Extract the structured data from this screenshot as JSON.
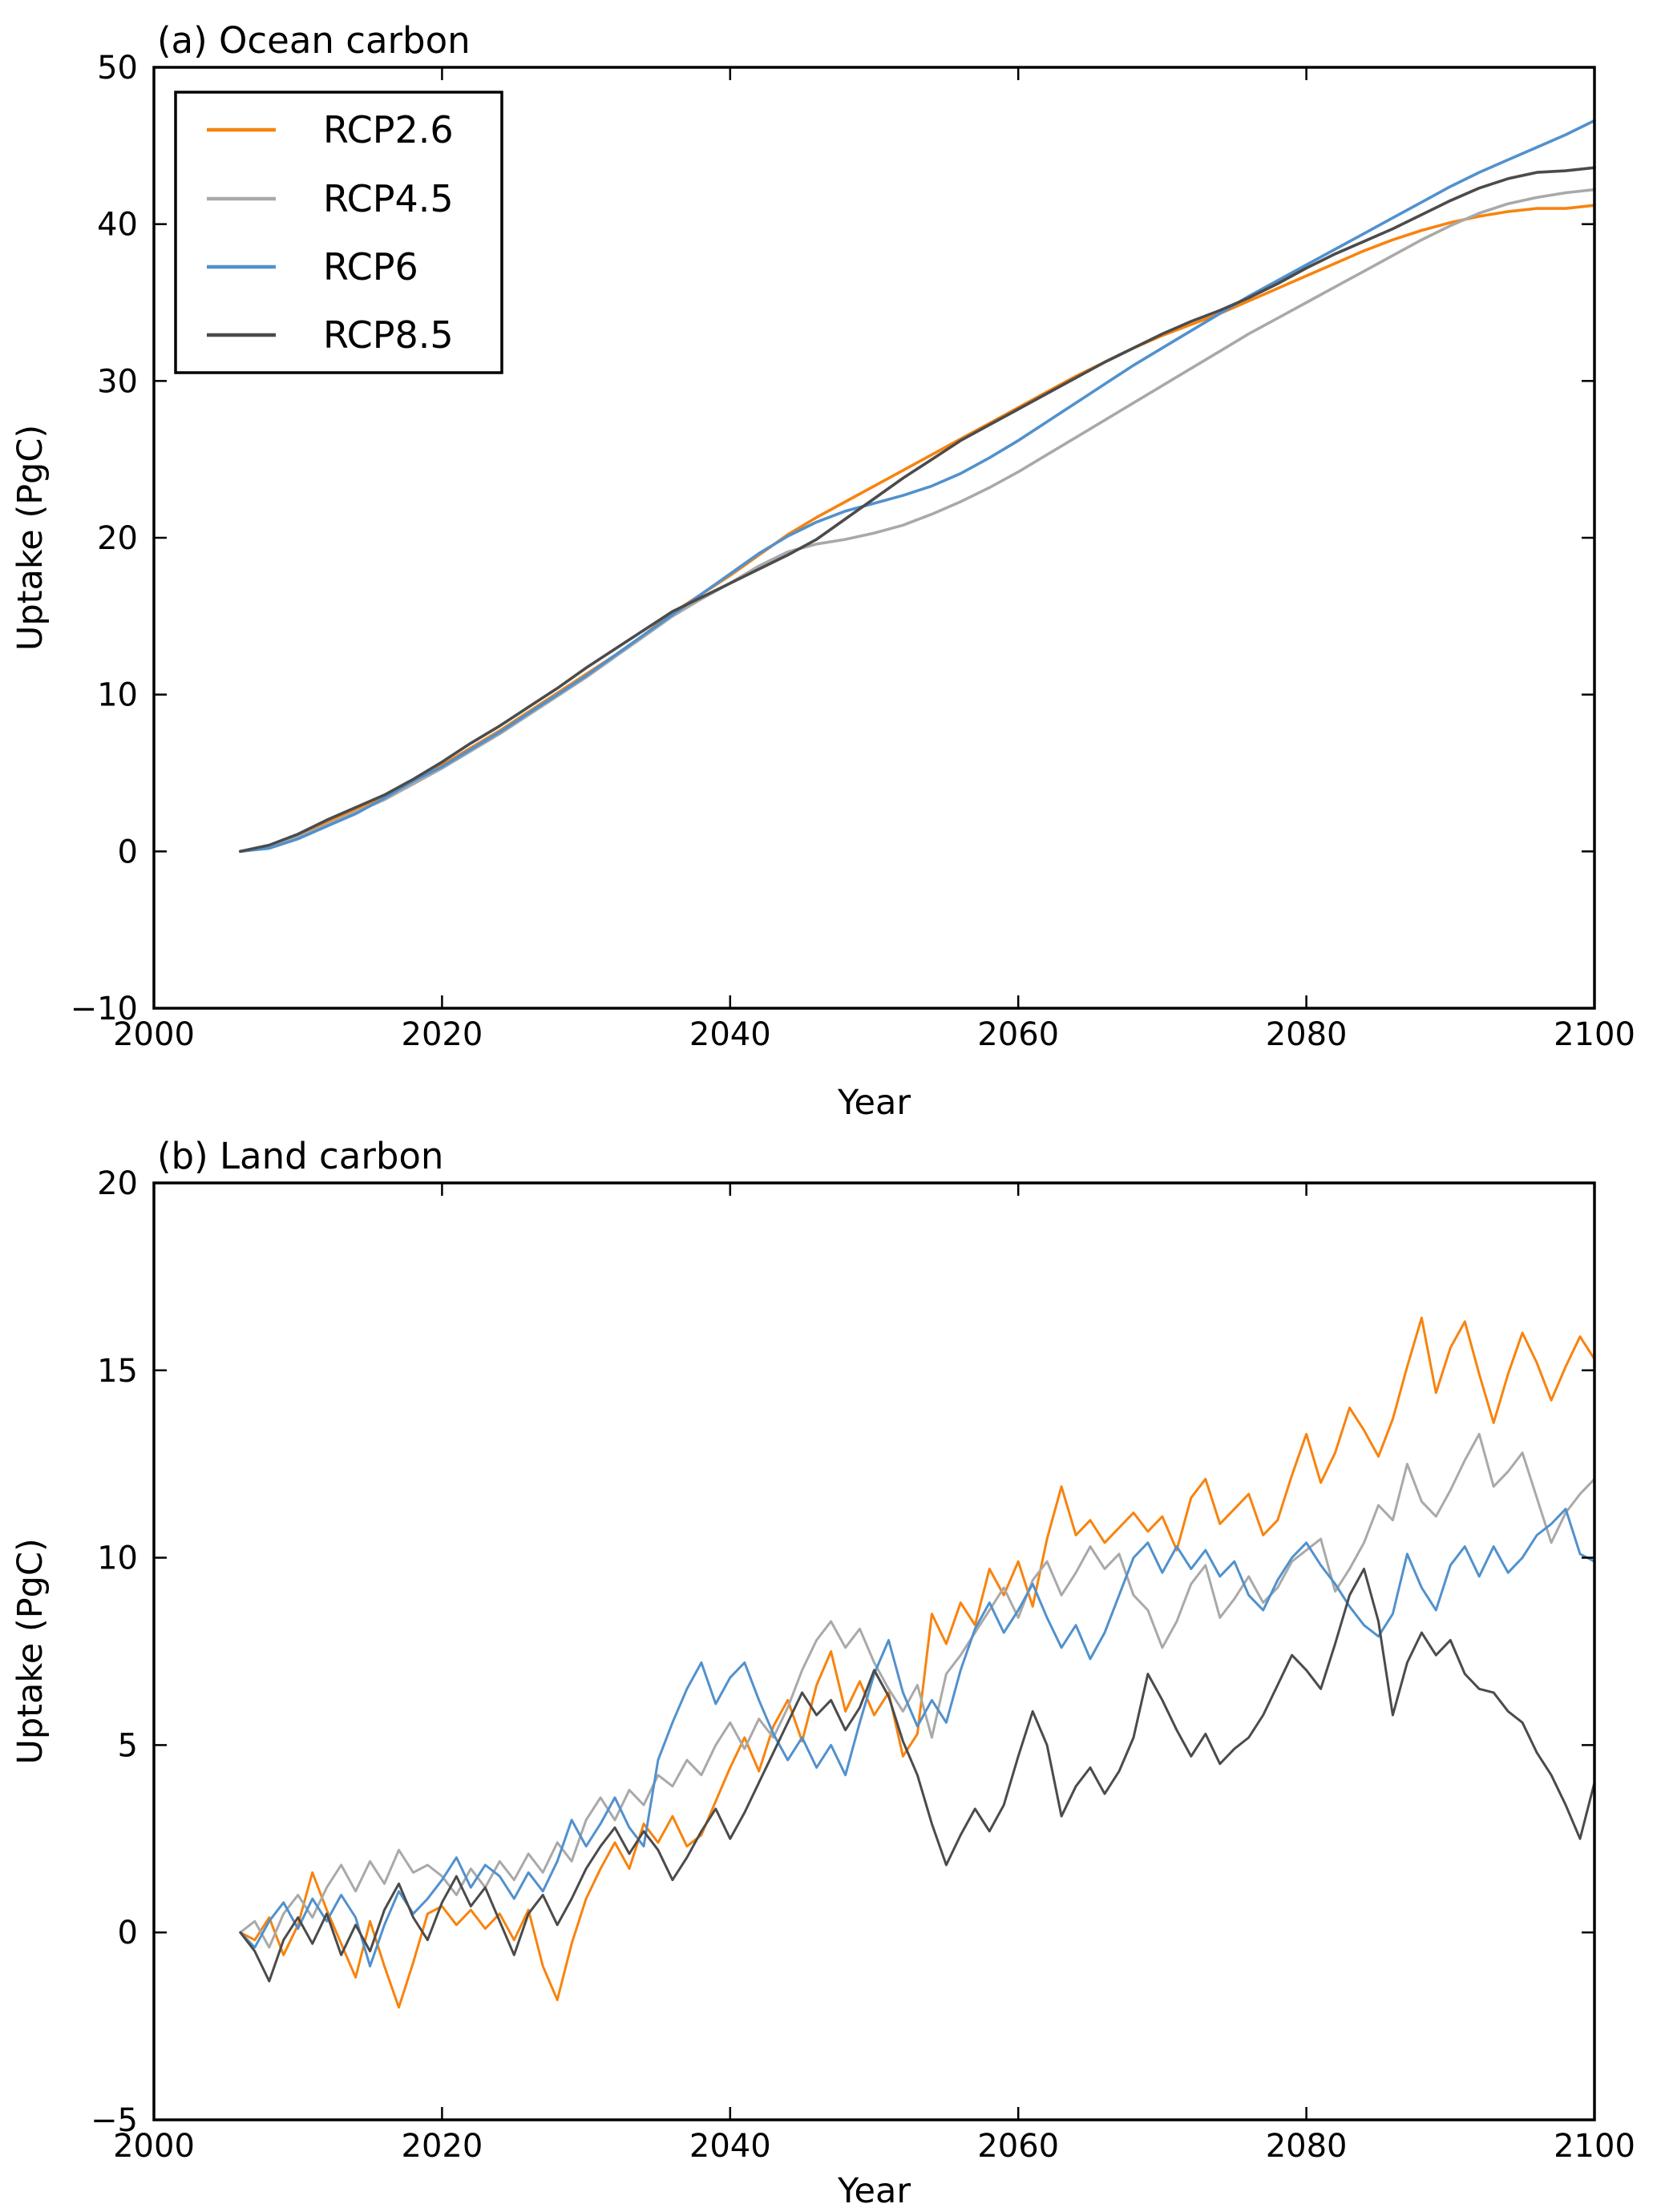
{
  "chart_data": [
    {
      "type": "line",
      "panel": "a",
      "title": "(a) Ocean carbon",
      "xlabel": "Year",
      "ylabel": "Uptake (PgC)",
      "xlim": [
        2000,
        2100
      ],
      "ylim": [
        -10,
        50
      ],
      "grid": false,
      "x_ticks": [
        2000,
        2020,
        2040,
        2060,
        2080,
        2100
      ],
      "x_tick_labels": [
        "2000",
        "2020",
        "2040",
        "2060",
        "2080",
        "2100"
      ],
      "y_ticks": [
        -10,
        0,
        10,
        20,
        30,
        40,
        50
      ],
      "y_tick_labels": [
        "−10",
        "0",
        "10",
        "20",
        "30",
        "40",
        "50"
      ],
      "legend": {
        "position": "upper-left",
        "entries": [
          "RCP2.6",
          "RCP4.5",
          "RCP6",
          "RCP8.5"
        ]
      },
      "x": [
        2006,
        2008,
        2010,
        2012,
        2014,
        2016,
        2018,
        2020,
        2022,
        2024,
        2026,
        2028,
        2030,
        2032,
        2034,
        2036,
        2038,
        2040,
        2042,
        2044,
        2046,
        2048,
        2050,
        2052,
        2054,
        2056,
        2058,
        2060,
        2062,
        2064,
        2066,
        2068,
        2070,
        2072,
        2074,
        2076,
        2078,
        2080,
        2082,
        2084,
        2086,
        2088,
        2090,
        2092,
        2094,
        2096,
        2098,
        2100
      ],
      "series": [
        {
          "name": "RCP2.6",
          "color": "#f8830e",
          "values": [
            0,
            0.3,
            1.0,
            1.9,
            2.7,
            3.5,
            4.4,
            5.5,
            6.6,
            7.7,
            8.9,
            10.1,
            11.3,
            12.5,
            13.8,
            15.2,
            16.4,
            17.6,
            18.9,
            20.2,
            21.3,
            22.3,
            23.3,
            24.3,
            25.3,
            26.3,
            27.3,
            28.3,
            29.3,
            30.3,
            31.2,
            32.1,
            32.9,
            33.6,
            34.3,
            35.1,
            35.9,
            36.7,
            37.5,
            38.3,
            39.0,
            39.6,
            40.1,
            40.5,
            40.8,
            41.0,
            41.0,
            41.2
          ]
        },
        {
          "name": "RCP4.5",
          "color": "#a9a9a9",
          "values": [
            0,
            0.3,
            0.9,
            1.7,
            2.5,
            3.3,
            4.3,
            5.3,
            6.4,
            7.5,
            8.7,
            9.9,
            11.1,
            12.4,
            13.7,
            15.0,
            16.1,
            17.1,
            18.2,
            19.1,
            19.6,
            19.9,
            20.3,
            20.8,
            21.5,
            22.3,
            23.2,
            24.2,
            25.3,
            26.4,
            27.5,
            28.6,
            29.7,
            30.8,
            31.9,
            33.0,
            34.0,
            35.0,
            36.0,
            37.0,
            38.0,
            39.0,
            39.9,
            40.7,
            41.3,
            41.7,
            42.0,
            42.2
          ]
        },
        {
          "name": "RCP6",
          "color": "#5191cd",
          "values": [
            0,
            0.2,
            0.8,
            1.6,
            2.4,
            3.4,
            4.5,
            5.4,
            6.5,
            7.6,
            8.8,
            10.0,
            11.2,
            12.5,
            13.8,
            15.1,
            16.4,
            17.7,
            19.0,
            20.1,
            21.0,
            21.7,
            22.2,
            22.7,
            23.3,
            24.1,
            25.1,
            26.2,
            27.4,
            28.6,
            29.8,
            31.0,
            32.1,
            33.2,
            34.3,
            35.4,
            36.4,
            37.4,
            38.4,
            39.4,
            40.4,
            41.4,
            42.4,
            43.3,
            44.1,
            44.9,
            45.7,
            46.6
          ]
        },
        {
          "name": "RCP8.5",
          "color": "#4b4b4b",
          "values": [
            0,
            0.4,
            1.1,
            2.0,
            2.8,
            3.6,
            4.6,
            5.7,
            6.9,
            8.0,
            9.2,
            10.4,
            11.7,
            12.9,
            14.1,
            15.3,
            16.2,
            17.1,
            18.0,
            18.9,
            19.9,
            21.2,
            22.5,
            23.8,
            25.0,
            26.2,
            27.2,
            28.2,
            29.2,
            30.2,
            31.2,
            32.1,
            33.0,
            33.8,
            34.5,
            35.3,
            36.2,
            37.2,
            38.1,
            38.9,
            39.7,
            40.6,
            41.5,
            42.3,
            42.9,
            43.3,
            43.4,
            43.6
          ]
        }
      ]
    },
    {
      "type": "line",
      "panel": "b",
      "title": "(b) Land carbon",
      "xlabel": "Year",
      "ylabel": "Uptake (PgC)",
      "xlim": [
        2000,
        2100
      ],
      "ylim": [
        -5,
        20
      ],
      "grid": false,
      "x_ticks": [
        2000,
        2020,
        2040,
        2060,
        2080,
        2100
      ],
      "x_tick_labels": [
        "2000",
        "2020",
        "2040",
        "2060",
        "2080",
        "2100"
      ],
      "y_ticks": [
        -5,
        0,
        5,
        10,
        15,
        20
      ],
      "y_tick_labels": [
        "−5",
        "0",
        "5",
        "10",
        "15",
        "20"
      ],
      "legend": null,
      "x": [
        2006,
        2007,
        2008,
        2009,
        2010,
        2011,
        2012,
        2013,
        2014,
        2015,
        2016,
        2017,
        2018,
        2019,
        2020,
        2021,
        2022,
        2023,
        2024,
        2025,
        2026,
        2027,
        2028,
        2029,
        2030,
        2031,
        2032,
        2033,
        2034,
        2035,
        2036,
        2037,
        2038,
        2039,
        2040,
        2041,
        2042,
        2043,
        2044,
        2045,
        2046,
        2047,
        2048,
        2049,
        2050,
        2051,
        2052,
        2053,
        2054,
        2055,
        2056,
        2057,
        2058,
        2059,
        2060,
        2061,
        2062,
        2063,
        2064,
        2065,
        2066,
        2067,
        2068,
        2069,
        2070,
        2071,
        2072,
        2073,
        2074,
        2075,
        2076,
        2077,
        2078,
        2079,
        2080,
        2081,
        2082,
        2083,
        2084,
        2085,
        2086,
        2087,
        2088,
        2089,
        2090,
        2091,
        2092,
        2093,
        2094,
        2095,
        2096,
        2097,
        2098,
        2099,
        2100
      ],
      "series": [
        {
          "name": "RCP2.6",
          "color": "#f8830e",
          "values": [
            0.0,
            -0.2,
            0.4,
            -0.6,
            0.2,
            1.6,
            0.6,
            -0.3,
            -1.2,
            0.3,
            -0.9,
            -2.0,
            -0.8,
            0.5,
            0.7,
            0.2,
            0.6,
            0.1,
            0.5,
            -0.2,
            0.6,
            -0.9,
            -1.8,
            -0.3,
            0.9,
            1.7,
            2.4,
            1.7,
            2.9,
            2.4,
            3.1,
            2.3,
            2.6,
            3.5,
            4.4,
            5.2,
            4.3,
            5.5,
            6.2,
            5.1,
            6.6,
            7.5,
            5.9,
            6.7,
            5.8,
            6.4,
            4.7,
            5.3,
            8.5,
            7.7,
            8.8,
            8.2,
            9.7,
            9.0,
            9.9,
            8.7,
            10.5,
            11.9,
            10.6,
            11.0,
            10.4,
            10.8,
            11.2,
            10.7,
            11.1,
            10.2,
            11.6,
            12.1,
            10.9,
            11.3,
            11.7,
            10.6,
            11.0,
            12.2,
            13.3,
            12.0,
            12.8,
            14.0,
            13.4,
            12.7,
            13.7,
            15.1,
            16.4,
            14.4,
            15.6,
            16.3,
            14.9,
            13.6,
            14.9,
            16.0,
            15.2,
            14.2,
            15.1,
            15.9,
            15.3
          ]
        },
        {
          "name": "RCP4.5",
          "color": "#a9a9a9",
          "values": [
            0.0,
            0.3,
            -0.4,
            0.5,
            1.0,
            0.4,
            1.2,
            1.8,
            1.1,
            1.9,
            1.3,
            2.2,
            1.6,
            1.8,
            1.5,
            1.0,
            1.7,
            1.2,
            1.9,
            1.4,
            2.1,
            1.6,
            2.4,
            1.9,
            3.0,
            3.6,
            3.0,
            3.8,
            3.4,
            4.2,
            3.9,
            4.6,
            4.2,
            5.0,
            5.6,
            4.9,
            5.7,
            5.2,
            6.0,
            7.0,
            7.8,
            8.3,
            7.6,
            8.1,
            7.2,
            6.5,
            5.9,
            6.6,
            5.2,
            6.9,
            7.4,
            8.0,
            8.6,
            9.2,
            8.4,
            9.4,
            9.9,
            9.0,
            9.6,
            10.3,
            9.7,
            10.1,
            9.0,
            8.6,
            7.6,
            8.3,
            9.3,
            9.8,
            8.4,
            8.9,
            9.5,
            8.8,
            9.2,
            9.9,
            10.2,
            10.5,
            9.1,
            9.7,
            10.4,
            11.4,
            11.0,
            12.5,
            11.5,
            11.1,
            11.8,
            12.6,
            13.3,
            11.9,
            12.3,
            12.8,
            11.6,
            10.4,
            11.2,
            11.7,
            12.1
          ]
        },
        {
          "name": "RCP6",
          "color": "#5191cd",
          "values": [
            0.0,
            -0.4,
            0.3,
            0.8,
            0.1,
            0.9,
            0.3,
            1.0,
            0.4,
            -0.9,
            0.2,
            1.1,
            0.5,
            0.9,
            1.4,
            2.0,
            1.2,
            1.8,
            1.5,
            0.9,
            1.6,
            1.1,
            1.9,
            3.0,
            2.3,
            2.9,
            3.6,
            2.8,
            2.3,
            4.6,
            5.6,
            6.5,
            7.2,
            6.1,
            6.8,
            7.2,
            6.2,
            5.3,
            4.6,
            5.2,
            4.4,
            5.0,
            4.2,
            5.6,
            6.9,
            7.8,
            6.4,
            5.5,
            6.2,
            5.6,
            7.0,
            8.1,
            8.8,
            8.0,
            8.6,
            9.3,
            8.4,
            7.6,
            8.2,
            7.3,
            8.0,
            9.0,
            10.0,
            10.4,
            9.6,
            10.3,
            9.7,
            10.2,
            9.5,
            9.9,
            9.0,
            8.6,
            9.4,
            10.0,
            10.4,
            9.8,
            9.3,
            8.7,
            8.2,
            7.9,
            8.5,
            10.1,
            9.2,
            8.6,
            9.8,
            10.3,
            9.5,
            10.3,
            9.6,
            10.0,
            10.6,
            10.9,
            11.3,
            10.1,
            9.9
          ]
        },
        {
          "name": "RCP8.5",
          "color": "#4b4b4b",
          "values": [
            0.0,
            -0.5,
            -1.3,
            -0.2,
            0.4,
            -0.3,
            0.5,
            -0.6,
            0.2,
            -0.5,
            0.6,
            1.3,
            0.4,
            -0.2,
            0.8,
            1.5,
            0.7,
            1.2,
            0.3,
            -0.6,
            0.5,
            1.0,
            0.2,
            0.9,
            1.7,
            2.3,
            2.8,
            2.1,
            2.7,
            2.2,
            1.4,
            2.0,
            2.7,
            3.3,
            2.5,
            3.2,
            4.0,
            4.8,
            5.6,
            6.4,
            5.8,
            6.2,
            5.4,
            6.0,
            7.0,
            6.3,
            5.1,
            4.2,
            2.9,
            1.8,
            2.6,
            3.3,
            2.7,
            3.4,
            4.7,
            5.9,
            5.0,
            3.1,
            3.9,
            4.4,
            3.7,
            4.3,
            5.2,
            6.9,
            6.2,
            5.4,
            4.7,
            5.3,
            4.5,
            4.9,
            5.2,
            5.8,
            6.6,
            7.4,
            7.0,
            6.5,
            7.7,
            9.0,
            9.7,
            8.3,
            5.8,
            7.2,
            8.0,
            7.4,
            7.8,
            6.9,
            6.5,
            6.4,
            5.9,
            5.6,
            4.8,
            4.2,
            3.4,
            2.5,
            4.0
          ]
        }
      ]
    }
  ]
}
